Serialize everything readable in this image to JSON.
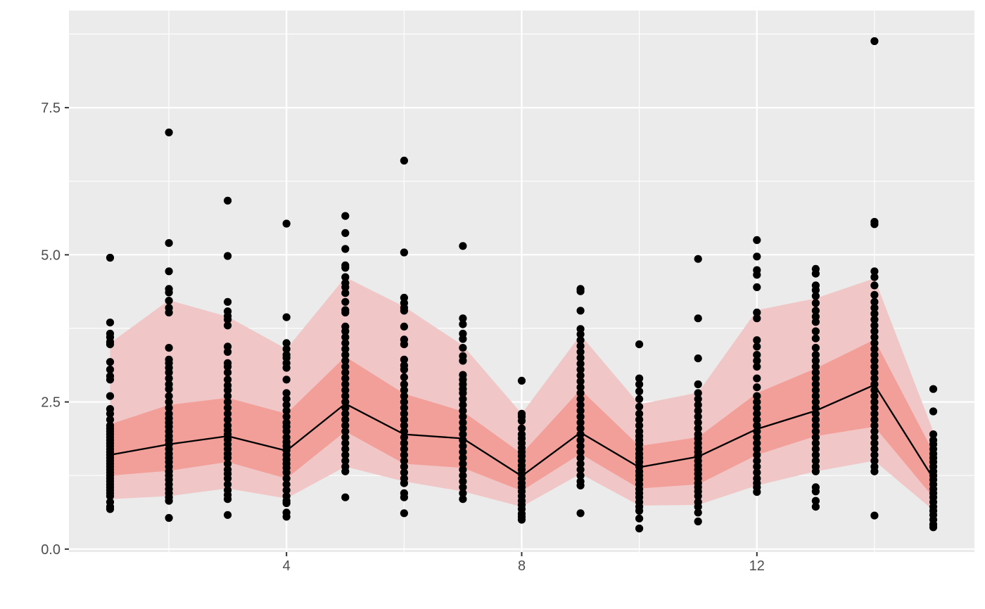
{
  "chart_data": {
    "type": "scatter",
    "title": "",
    "xlabel": "",
    "ylabel": "",
    "xlim": [
      0.3,
      15.7
    ],
    "ylim": [
      -0.05,
      9.15
    ],
    "x_ticks": [
      4,
      8,
      12
    ],
    "x_tick_labels": [
      "4",
      "8",
      "12"
    ],
    "y_ticks": [
      0,
      2.5,
      5,
      7.5
    ],
    "y_tick_labels": [
      "0.0",
      "2.5",
      "5.0",
      "7.5"
    ],
    "grid": true,
    "colors": {
      "panel_background": "#ebebeb",
      "grid_line": "#ffffff",
      "outer_band": "#f0c7c6",
      "inner_band": "#f29e99",
      "median_line": "#000000",
      "points": "#000000"
    },
    "bands": {
      "x": [
        1,
        2,
        3,
        4,
        5,
        6,
        7,
        8,
        9,
        10,
        11,
        12,
        13,
        14,
        15
      ],
      "outer_low": [
        0.85,
        0.9,
        1.03,
        0.86,
        1.4,
        1.15,
        0.98,
        0.72,
        1.28,
        0.74,
        0.75,
        1.08,
        1.32,
        1.5,
        0.66
      ],
      "inner_low": [
        1.25,
        1.33,
        1.48,
        1.2,
        2.0,
        1.45,
        1.38,
        0.99,
        1.62,
        1.03,
        1.1,
        1.6,
        1.92,
        2.08,
        0.88
      ],
      "median": [
        1.6,
        1.78,
        1.92,
        1.67,
        2.47,
        1.95,
        1.88,
        1.24,
        1.98,
        1.39,
        1.57,
        2.04,
        2.35,
        2.79,
        1.2
      ],
      "inner_high": [
        2.12,
        2.45,
        2.57,
        2.3,
        3.27,
        2.64,
        2.34,
        1.62,
        2.71,
        1.75,
        1.9,
        2.65,
        3.07,
        3.56,
        1.65
      ],
      "outer_high": [
        3.5,
        4.23,
        3.95,
        3.4,
        4.62,
        4.12,
        3.46,
        2.3,
        3.64,
        2.46,
        2.66,
        4.06,
        4.26,
        4.6,
        2.0
      ]
    },
    "points": [
      {
        "x": 1,
        "y": [
          0.68,
          0.72,
          0.8,
          0.9,
          0.95,
          1.0,
          1.05,
          1.1,
          1.15,
          1.2,
          1.25,
          1.3,
          1.35,
          1.4,
          1.45,
          1.5,
          1.55,
          1.6,
          1.65,
          1.7,
          1.75,
          1.8,
          1.85,
          1.9,
          1.95,
          2.0,
          2.05,
          2.1,
          2.2,
          2.3,
          2.38,
          2.6,
          2.88,
          2.94,
          3.05,
          3.18,
          3.48,
          3.52,
          3.6,
          3.66,
          3.85,
          4.95
        ]
      },
      {
        "x": 2,
        "y": [
          0.53,
          0.82,
          0.88,
          0.95,
          1.02,
          1.1,
          1.18,
          1.25,
          1.32,
          1.4,
          1.48,
          1.55,
          1.62,
          1.7,
          1.78,
          1.85,
          1.92,
          2.0,
          2.08,
          2.15,
          2.22,
          2.3,
          2.4,
          2.5,
          2.6,
          2.72,
          2.8,
          2.9,
          3.0,
          3.08,
          3.16,
          3.22,
          3.42,
          4.02,
          4.1,
          4.22,
          4.36,
          4.42,
          4.72,
          5.2,
          7.08
        ]
      },
      {
        "x": 3,
        "y": [
          0.58,
          0.85,
          0.92,
          1.0,
          1.1,
          1.2,
          1.28,
          1.35,
          1.45,
          1.55,
          1.62,
          1.7,
          1.78,
          1.86,
          1.95,
          2.02,
          2.1,
          2.2,
          2.3,
          2.4,
          2.5,
          2.6,
          2.7,
          2.78,
          2.88,
          3.0,
          3.1,
          3.16,
          3.35,
          3.44,
          3.8,
          3.9,
          3.96,
          4.04,
          4.2,
          4.98,
          5.92
        ]
      },
      {
        "x": 4,
        "y": [
          0.55,
          0.62,
          0.78,
          0.82,
          0.9,
          1.0,
          1.1,
          1.2,
          1.3,
          1.38,
          1.45,
          1.52,
          1.6,
          1.68,
          1.75,
          1.82,
          1.9,
          2.0,
          2.08,
          2.15,
          2.25,
          2.35,
          2.45,
          2.55,
          2.65,
          2.88,
          3.08,
          3.16,
          3.25,
          3.3,
          3.4,
          3.5,
          3.94,
          5.53
        ]
      },
      {
        "x": 5,
        "y": [
          0.88,
          1.32,
          1.4,
          1.5,
          1.6,
          1.7,
          1.8,
          1.9,
          2.0,
          2.1,
          2.2,
          2.3,
          2.4,
          2.5,
          2.6,
          2.7,
          2.8,
          2.9,
          3.0,
          3.1,
          3.2,
          3.3,
          3.4,
          3.5,
          3.6,
          3.7,
          3.78,
          4.02,
          4.06,
          4.2,
          4.35,
          4.45,
          4.52,
          4.62,
          4.78,
          4.82,
          5.1,
          5.37,
          5.66
        ]
      },
      {
        "x": 6,
        "y": [
          0.61,
          0.88,
          0.95,
          1.12,
          1.2,
          1.3,
          1.4,
          1.5,
          1.6,
          1.7,
          1.8,
          1.9,
          2.0,
          2.1,
          2.2,
          2.3,
          2.4,
          2.5,
          2.6,
          2.7,
          2.8,
          2.92,
          3.05,
          3.12,
          3.22,
          3.48,
          3.56,
          3.78,
          4.05,
          4.1,
          4.18,
          4.27,
          5.04,
          6.6
        ]
      },
      {
        "x": 7,
        "y": [
          0.85,
          0.95,
          1.05,
          1.15,
          1.25,
          1.35,
          1.45,
          1.55,
          1.65,
          1.75,
          1.85,
          1.95,
          2.05,
          2.15,
          2.25,
          2.35,
          2.45,
          2.55,
          2.65,
          2.72,
          2.8,
          2.88,
          2.96,
          3.2,
          3.28,
          3.42,
          3.57,
          3.66,
          3.82,
          3.92,
          5.15
        ]
      },
      {
        "x": 8,
        "y": [
          0.5,
          0.55,
          0.6,
          0.68,
          0.75,
          0.82,
          0.9,
          0.98,
          1.05,
          1.12,
          1.2,
          1.28,
          1.35,
          1.42,
          1.5,
          1.58,
          1.65,
          1.72,
          1.8,
          1.88,
          1.95,
          2.05,
          2.18,
          2.25,
          2.3,
          2.86
        ]
      },
      {
        "x": 9,
        "y": [
          0.61,
          1.08,
          1.15,
          1.25,
          1.35,
          1.45,
          1.55,
          1.65,
          1.75,
          1.85,
          1.95,
          2.05,
          2.15,
          2.25,
          2.35,
          2.45,
          2.55,
          2.65,
          2.75,
          2.85,
          2.95,
          3.05,
          3.15,
          3.25,
          3.35,
          3.45,
          3.55,
          3.65,
          3.74,
          4.05,
          4.38,
          4.42
        ]
      },
      {
        "x": 10,
        "y": [
          0.35,
          0.52,
          0.65,
          0.72,
          0.8,
          0.88,
          0.95,
          1.02,
          1.1,
          1.18,
          1.25,
          1.32,
          1.4,
          1.48,
          1.55,
          1.62,
          1.7,
          1.78,
          1.85,
          1.92,
          2.0,
          2.1,
          2.2,
          2.3,
          2.42,
          2.55,
          2.68,
          2.8,
          2.9,
          3.48
        ]
      },
      {
        "x": 11,
        "y": [
          0.47,
          0.62,
          0.72,
          0.8,
          0.9,
          0.98,
          1.05,
          1.12,
          1.2,
          1.28,
          1.35,
          1.42,
          1.5,
          1.58,
          1.65,
          1.72,
          1.8,
          1.88,
          1.95,
          2.05,
          2.15,
          2.25,
          2.35,
          2.45,
          2.55,
          2.65,
          2.8,
          3.24,
          3.92,
          4.93
        ]
      },
      {
        "x": 12,
        "y": [
          0.97,
          1.05,
          1.12,
          1.2,
          1.3,
          1.4,
          1.5,
          1.6,
          1.7,
          1.8,
          1.9,
          2.0,
          2.1,
          2.2,
          2.3,
          2.4,
          2.5,
          2.6,
          2.75,
          2.9,
          3.1,
          3.2,
          3.3,
          3.44,
          3.55,
          3.92,
          4.02,
          4.45,
          4.66,
          4.74,
          4.97,
          5.25
        ]
      },
      {
        "x": 13,
        "y": [
          0.72,
          0.82,
          0.98,
          1.05,
          1.32,
          1.4,
          1.5,
          1.6,
          1.7,
          1.8,
          1.9,
          2.0,
          2.1,
          2.2,
          2.3,
          2.4,
          2.5,
          2.6,
          2.7,
          2.8,
          2.9,
          3.0,
          3.1,
          3.2,
          3.3,
          3.42,
          3.58,
          3.7,
          3.86,
          3.95,
          4.05,
          4.18,
          4.3,
          4.4,
          4.48,
          4.68,
          4.76
        ]
      },
      {
        "x": 14,
        "y": [
          0.57,
          1.32,
          1.4,
          1.5,
          1.6,
          1.7,
          1.8,
          1.9,
          2.0,
          2.1,
          2.2,
          2.3,
          2.4,
          2.5,
          2.6,
          2.7,
          2.8,
          2.9,
          3.0,
          3.1,
          3.2,
          3.3,
          3.4,
          3.5,
          3.6,
          3.7,
          3.8,
          3.9,
          4.0,
          4.1,
          4.2,
          4.32,
          4.48,
          4.62,
          4.72,
          5.52,
          5.56,
          8.63
        ]
      },
      {
        "x": 15,
        "y": [
          0.37,
          0.42,
          0.5,
          0.58,
          0.65,
          0.72,
          0.8,
          0.88,
          0.95,
          1.02,
          1.1,
          1.18,
          1.25,
          1.32,
          1.4,
          1.48,
          1.55,
          1.62,
          1.7,
          1.78,
          1.85,
          1.95,
          2.34,
          2.72
        ]
      }
    ]
  }
}
